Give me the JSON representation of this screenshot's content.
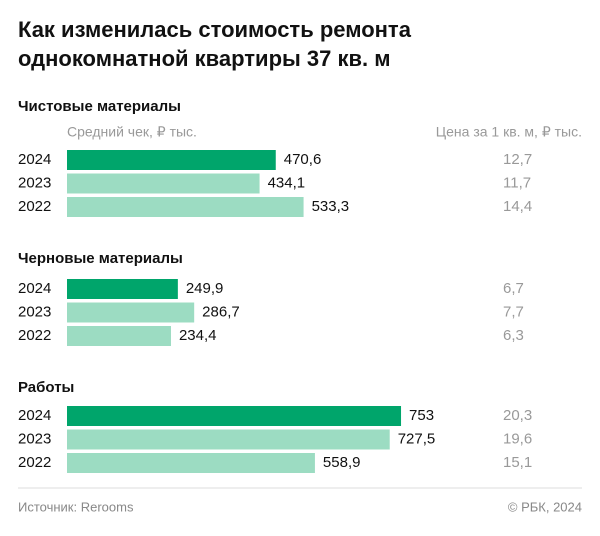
{
  "title": "Как изменилась стоимость ремонта однокомнатной квартиры 37 кв. м",
  "column_headers": {
    "bars": "Средний чек, ₽ тыс.",
    "price": "Цена за 1 кв. м, ₽ тыс."
  },
  "chart_data": [
    {
      "type": "bar",
      "orientation": "horizontal",
      "title": "Чистовые материалы",
      "categories": [
        "2024",
        "2023",
        "2022"
      ],
      "values": [
        470.6,
        434.1,
        533.3
      ],
      "value_labels": [
        "470,6",
        "434,1",
        "533,3"
      ],
      "colors": [
        "#00a56b",
        "#9cdcc2",
        "#9cdcc2"
      ],
      "price_per_sqm": {
        "values": [
          12.7,
          11.7,
          14.4
        ],
        "value_labels": [
          "12,7",
          "11,7",
          "14,4"
        ]
      }
    },
    {
      "type": "bar",
      "orientation": "horizontal",
      "title": "Черновые материалы",
      "categories": [
        "2024",
        "2023",
        "2022"
      ],
      "values": [
        249.9,
        286.7,
        234.4
      ],
      "value_labels": [
        "249,9",
        "286,7",
        "234,4"
      ],
      "colors": [
        "#00a56b",
        "#9cdcc2",
        "#9cdcc2"
      ],
      "price_per_sqm": {
        "values": [
          6.7,
          7.7,
          6.3
        ],
        "value_labels": [
          "6,7",
          "7,7",
          "6,3"
        ]
      }
    },
    {
      "type": "bar",
      "orientation": "horizontal",
      "title": "Работы",
      "categories": [
        "2024",
        "2023",
        "2022"
      ],
      "values": [
        753,
        727.5,
        558.9
      ],
      "value_labels": [
        "753",
        "727,5",
        "558,9"
      ],
      "colors": [
        "#00a56b",
        "#9cdcc2",
        "#9cdcc2"
      ],
      "price_per_sqm": {
        "values": [
          20.3,
          19.6,
          15.1
        ],
        "value_labels": [
          "20,3",
          "19,6",
          "15,1"
        ]
      }
    }
  ],
  "footer": {
    "source": "Источник: Rerooms",
    "copyright": "© РБК, 2024"
  }
}
